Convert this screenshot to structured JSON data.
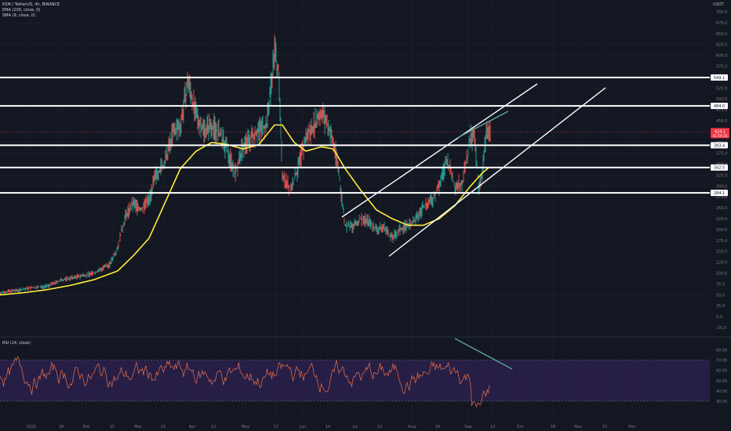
{
  "legend": {
    "symbol": "KSM / TetherUS, 4h, BINANCE",
    "ema": "EMA (200, close, 0)",
    "sma": "SMA (9, close, 0)"
  },
  "rsi_legend": "RSI (14, close)",
  "currency": "USDT",
  "colors": {
    "background": "#131722",
    "grid": "#1e222d",
    "candle": "#26a69a",
    "ema": "#ffeb3b",
    "sma": "#2ab7b0",
    "levels": "#ffffff",
    "channel": "#ffffff",
    "divergence": "#5aa39a",
    "rsi_line": "#e8724a",
    "rsi_band": "#2a1f4a",
    "current_price_bg": "#f23645"
  },
  "chart_data": [
    {
      "type": "line",
      "title": "KSM / TetherUS, 4h, BINANCE",
      "ylim": [
        -25,
        700
      ],
      "y_ticks": [
        700.0,
        675.0,
        650.0,
        625.0,
        600.0,
        575.0,
        550.0,
        525.0,
        500.0,
        475.0,
        450.0,
        425.0,
        400.0,
        375.0,
        350.0,
        325.0,
        300.0,
        275.0,
        250.0,
        225.0,
        200.0,
        175.0,
        150.0,
        125.0,
        100.0,
        75.0,
        50.0,
        25.0,
        0.0,
        -25.0
      ],
      "x_tick_labels": [
        "2021",
        "18",
        "Feb",
        "15",
        "Mar",
        "15",
        "Apr",
        "12",
        "May",
        "17",
        "Jun",
        "14",
        "Jul",
        "12",
        "Aug",
        "16",
        "Sep",
        "13",
        "Oct",
        "18",
        "Nov",
        "15",
        "Dec"
      ],
      "horizontal_levels": [
        {
          "value": 549.1,
          "label": "549.1"
        },
        {
          "value": 484.0,
          "label": "484.0"
        },
        {
          "value": 393.4,
          "label": "393.4"
        },
        {
          "value": 342.5,
          "label": "342.5"
        },
        {
          "value": 284.1,
          "label": "284.1"
        }
      ],
      "current_price": {
        "value": 424.1,
        "label": "424.1",
        "countdown": "01:59:24"
      },
      "series": [
        {
          "name": "price",
          "points": [
            [
              0,
              55
            ],
            [
              20,
              60
            ],
            [
              40,
              66
            ],
            [
              60,
              70
            ],
            [
              80,
              85
            ],
            [
              100,
              92
            ],
            [
              120,
              100
            ],
            [
              140,
              120
            ],
            [
              150,
              160
            ],
            [
              160,
              230
            ],
            [
              170,
              260
            ],
            [
              180,
              245
            ],
            [
              190,
              270
            ],
            [
              200,
              330
            ],
            [
              210,
              350
            ],
            [
              220,
              420
            ],
            [
              230,
              440
            ],
            [
              240,
              540
            ],
            [
              250,
              460
            ],
            [
              260,
              430
            ],
            [
              270,
              440
            ],
            [
              280,
              420
            ],
            [
              290,
              380
            ],
            [
              300,
              330
            ],
            [
              310,
              390
            ],
            [
              320,
              410
            ],
            [
              330,
              430
            ],
            [
              340,
              440
            ],
            [
              350,
              610
            ],
            [
              355,
              570
            ],
            [
              360,
              330
            ],
            [
              370,
              290
            ],
            [
              380,
              340
            ],
            [
              390,
              410
            ],
            [
              400,
              440
            ],
            [
              410,
              470
            ],
            [
              420,
              430
            ],
            [
              430,
              360
            ],
            [
              440,
              210
            ],
            [
              450,
              205
            ],
            [
              460,
              225
            ],
            [
              470,
              220
            ],
            [
              480,
              200
            ],
            [
              490,
              205
            ],
            [
              500,
              180
            ],
            [
              510,
              200
            ],
            [
              520,
              210
            ],
            [
              530,
              220
            ],
            [
              540,
              255
            ],
            [
              550,
              265
            ],
            [
              560,
              300
            ],
            [
              570,
              360
            ],
            [
              580,
              300
            ],
            [
              590,
              310
            ],
            [
              600,
              410
            ],
            [
              605,
              410
            ],
            [
              610,
              300
            ],
            [
              615,
              330
            ],
            [
              620,
              420
            ],
            [
              625,
              424
            ]
          ]
        },
        {
          "name": "EMA 200",
          "points": [
            [
              0,
              50
            ],
            [
              30,
              55
            ],
            [
              60,
              62
            ],
            [
              90,
              72
            ],
            [
              120,
              85
            ],
            [
              150,
              105
            ],
            [
              170,
              140
            ],
            [
              190,
              180
            ],
            [
              210,
              260
            ],
            [
              230,
              340
            ],
            [
              250,
              380
            ],
            [
              270,
              400
            ],
            [
              290,
              395
            ],
            [
              310,
              385
            ],
            [
              330,
              395
            ],
            [
              350,
              440
            ],
            [
              360,
              440
            ],
            [
              375,
              400
            ],
            [
              390,
              380
            ],
            [
              410,
              390
            ],
            [
              425,
              385
            ],
            [
              440,
              340
            ],
            [
              460,
              290
            ],
            [
              480,
              245
            ],
            [
              500,
              225
            ],
            [
              520,
              210
            ],
            [
              540,
              210
            ],
            [
              560,
              225
            ],
            [
              580,
              255
            ],
            [
              600,
              300
            ],
            [
              615,
              330
            ],
            [
              625,
              345
            ]
          ]
        }
      ]
    },
    {
      "type": "line",
      "title": "RSI (14, close)",
      "ylim": [
        20,
        85
      ],
      "y_ticks": [
        80.0,
        70.0,
        60.0,
        50.0,
        40.0,
        30.0
      ],
      "band": [
        30,
        70
      ]
    }
  ]
}
